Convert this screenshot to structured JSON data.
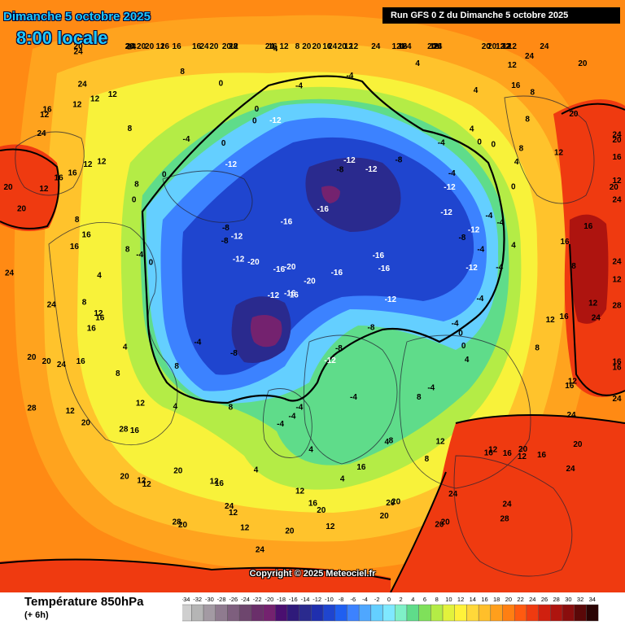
{
  "header": {
    "date": "Dimanche 5 octobre 2025",
    "local_time": "8:00 locale",
    "run_info": "Run GFS 0 Z du Dimanche 5 octobre 2025"
  },
  "copyright": "Copyright © 2025 Meteociel.fr",
  "footer": {
    "title": "Température 850hPa",
    "subtitle": "(+ 6h)"
  },
  "legend": {
    "ticks": [
      "-34",
      "-32",
      "-30",
      "-28",
      "-26",
      "-24",
      "-22",
      "-20",
      "-18",
      "-16",
      "-14",
      "-12",
      "-10",
      "-8",
      "-6",
      "-4",
      "-2",
      "0",
      "2",
      "4",
      "6",
      "8",
      "10",
      "12",
      "14",
      "16",
      "18",
      "20",
      "22",
      "24",
      "26",
      "28",
      "30",
      "32",
      "34"
    ],
    "colors": [
      "#cfcfcf",
      "#b5b5b5",
      "#a39aa3",
      "#8f7b8f",
      "#7e5f7e",
      "#6e466e",
      "#6a2f6a",
      "#74226f",
      "#4a0f70",
      "#2f1a7a",
      "#2a2a8e",
      "#1f2fae",
      "#1f45cf",
      "#1f5ff0",
      "#3c82ff",
      "#4fa7ff",
      "#64cfff",
      "#7fe8ff",
      "#7ff0c8",
      "#5fdc8a",
      "#7fe05a",
      "#b4ec46",
      "#e2f23c",
      "#fff23a",
      "#ffd83a",
      "#ffbf2a",
      "#ff9f1c",
      "#ff7f12",
      "#ff5a10",
      "#ef3a10",
      "#d0200f",
      "#ae140f",
      "#8a0d0d",
      "#5a0808",
      "#2a0303"
    ]
  },
  "map": {
    "colors": {
      "warm_30": "#ae140f",
      "warm_24": "#ef3a10",
      "warm_20": "#ff7f12",
      "warm_16": "#ff9f1c",
      "warm_12": "#ffbf2a",
      "mild_8": "#fff23a",
      "mild_4": "#b4ec46",
      "zero": "#5fdc8a",
      "cool_m4": "#64cfff",
      "cold_m8": "#3c82ff",
      "cold_m12": "#1f45cf",
      "cold_m16": "#2a2a8e",
      "cold_m20": "#74226f"
    },
    "temperature_labels": [
      "16",
      "12",
      "12",
      "12",
      "20",
      "8",
      "12",
      "16",
      "12",
      "20",
      "16",
      "8",
      "12",
      "12",
      "12",
      "12",
      "20",
      "8",
      "12",
      "16",
      "20",
      "12",
      "12",
      "12",
      "8",
      "8",
      "-12",
      "16",
      "20",
      "8",
      "8",
      "12",
      "-4",
      "-4",
      "-12",
      "-12",
      "16",
      "20",
      "8",
      "8",
      "-4",
      "0",
      "-16",
      "16",
      "20",
      "20",
      "12",
      "0",
      "-16",
      "16",
      "0",
      "0",
      "-8",
      "-12",
      "0",
      "-4",
      "-4",
      "-4",
      "-4",
      "0",
      "-4",
      "12",
      "16",
      "16",
      "16",
      "20",
      "20",
      "12",
      "-4",
      "-8",
      "-16",
      "-12",
      "-8",
      "-4",
      "12",
      "12",
      "-12",
      "-16",
      "-12",
      "-8",
      "12",
      "12",
      "20",
      "20",
      "12",
      "-12",
      "12",
      "-8",
      "-12",
      "-8",
      "28",
      "20",
      "16",
      "-8",
      "0",
      "-4",
      "0",
      "16",
      "20",
      "12",
      "-16",
      "-16",
      "-12",
      "-16",
      "-4",
      "0",
      "-4",
      "4",
      "20",
      "24",
      "8",
      "-20",
      "-8",
      "28",
      "16",
      "8",
      "-20",
      "-12",
      "-16",
      "-20",
      "-12",
      "20",
      "12",
      "-4",
      "4",
      "20",
      "16",
      "-12",
      "4",
      "-4",
      "20",
      "12",
      "4",
      "4",
      "8",
      "0",
      "20",
      "8",
      "4",
      "-4",
      "4",
      "12",
      "4",
      "20",
      "4",
      "8",
      "12",
      "16",
      "12",
      "0",
      "4",
      "0",
      "-4",
      "16",
      "4",
      "4",
      "8",
      "20",
      "12",
      "8",
      "4",
      "16",
      "24",
      "4",
      "8",
      "-4",
      "8",
      "16",
      "12",
      "12",
      "4",
      "12",
      "12",
      "24",
      "24",
      "12",
      "16",
      "24",
      "16",
      "16",
      "24",
      "12",
      "20",
      "20",
      "24",
      "20",
      "24",
      "24",
      "24",
      "20",
      "16",
      "16",
      "20",
      "24",
      "24",
      "24",
      "24",
      "12",
      "24",
      "24",
      "20",
      "24",
      "24",
      "16",
      "20",
      "24",
      "24",
      "16",
      "12",
      "20",
      "20",
      "24",
      "24",
      "20",
      "20",
      "24",
      "16",
      "16",
      "20",
      "16",
      "28",
      "28",
      "24",
      "24",
      "24",
      "24",
      "28",
      "28",
      "16"
    ]
  }
}
